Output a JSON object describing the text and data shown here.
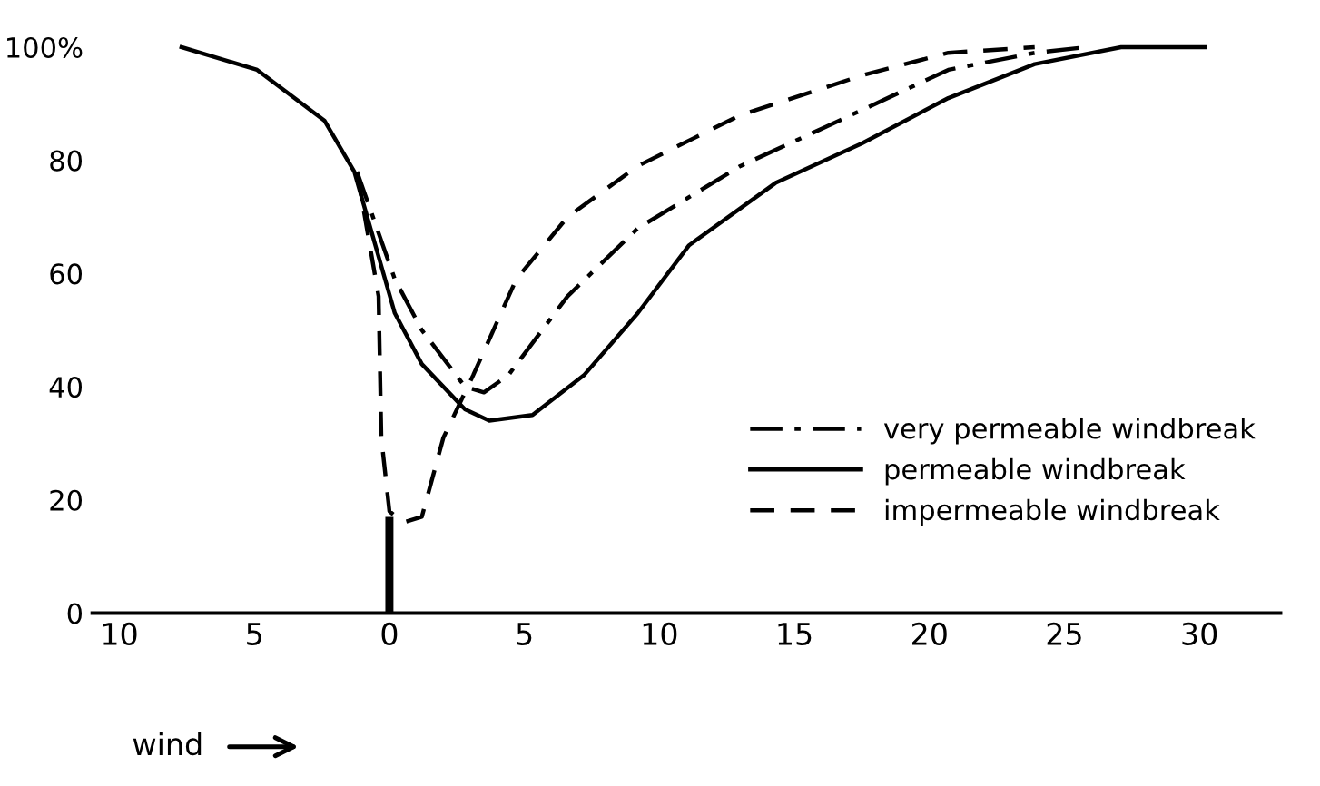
{
  "chart_data": {
    "type": "line",
    "xlim": [
      -11,
      33
    ],
    "ylim": [
      0,
      100
    ],
    "xticks": [
      {
        "value": -10,
        "label": "10"
      },
      {
        "value": -5,
        "label": "5"
      },
      0,
      5,
      10,
      15,
      20,
      25,
      30
    ],
    "yticks": [
      0,
      20,
      40,
      60,
      80,
      {
        "value": 100,
        "label": "100%"
      }
    ],
    "grid": false,
    "legend": "right",
    "series": [
      {
        "name": "very permeable windbreak",
        "color": "#000000",
        "line_style": "dashdot",
        "x": [
          -1.2,
          0.2,
          1.2,
          2.8,
          3.5,
          4.4,
          6.6,
          9.2,
          13,
          16.2,
          20.7,
          23.9,
          25.8
        ],
        "values": [
          78,
          59,
          50,
          40,
          39,
          42,
          56,
          68,
          79,
          86,
          96,
          99,
          100
        ]
      },
      {
        "name": "permeable windbreak",
        "color": "#000000",
        "line_style": "solid",
        "x": [
          -7.7,
          -4.9,
          -2.4,
          -1.3,
          0.2,
          1.2,
          2.8,
          3.7,
          5.3,
          7.2,
          9.2,
          11.1,
          14.3,
          17.5,
          20.7,
          23.9,
          27.1,
          30.2
        ],
        "values": [
          100,
          96,
          87,
          78,
          53,
          44,
          36,
          34,
          35,
          42,
          53,
          65,
          76,
          83,
          91,
          97,
          100,
          100
        ]
      },
      {
        "name": "impermeable windbreak",
        "color": "#000000",
        "line_style": "dashed",
        "x": [
          -1.2,
          -0.4,
          -0.3,
          0,
          0.5,
          1.2,
          2.0,
          3.1,
          4.7,
          6.6,
          9.2,
          13,
          17.5,
          20.7,
          23.9
        ],
        "values": [
          78,
          56,
          31,
          18,
          16,
          17,
          31,
          42,
          59,
          70,
          79,
          88,
          95,
          99,
          100
        ]
      },
      {
        "type": "bar",
        "color": "#000000",
        "x": [
          0
        ],
        "values": [
          17
        ]
      }
    ],
    "annotations": [
      "wind"
    ]
  }
}
